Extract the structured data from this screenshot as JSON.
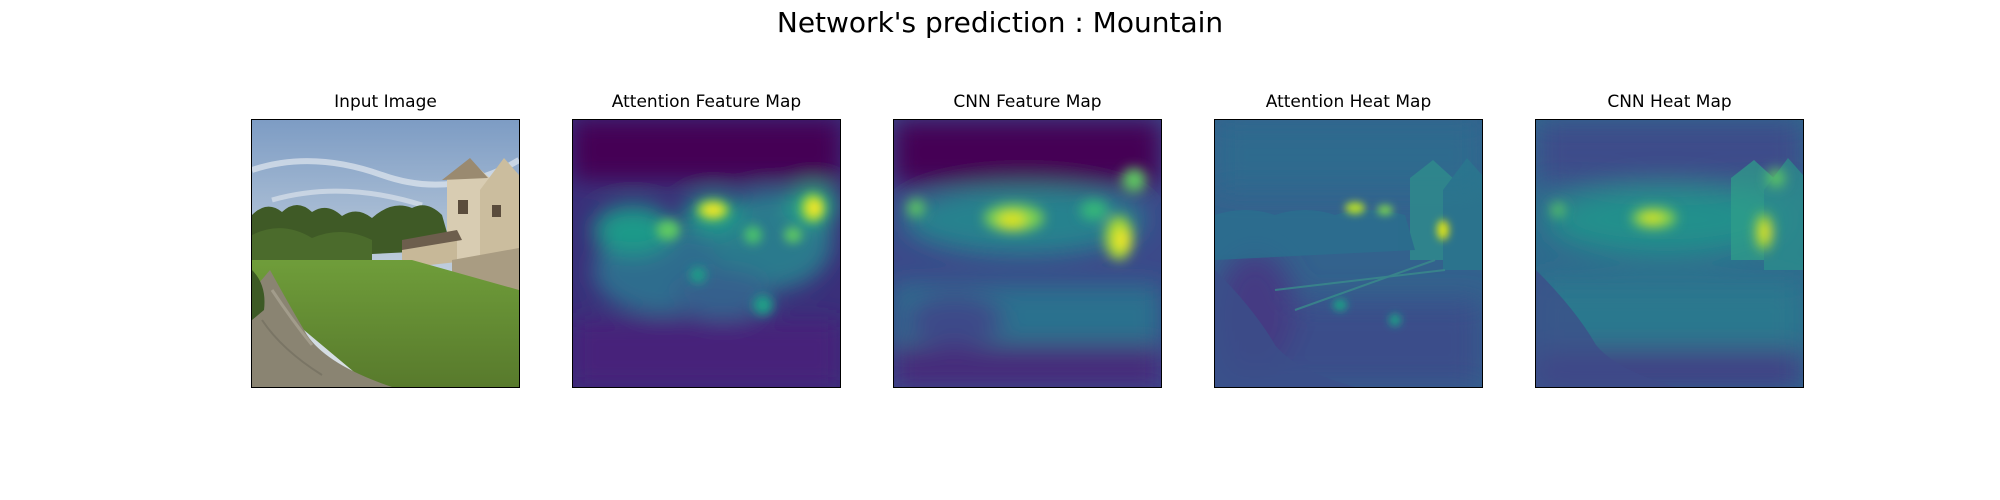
{
  "figure": {
    "suptitle": "Network's prediction : Mountain",
    "panels": [
      {
        "title": "Input Image",
        "icon": "landscape-photo"
      },
      {
        "title": "Attention Feature Map",
        "icon": "viridis-feature-map"
      },
      {
        "title": "CNN Feature Map",
        "icon": "viridis-feature-map"
      },
      {
        "title": "Attention Heat Map",
        "icon": "viridis-heat-overlay"
      },
      {
        "title": "CNN Heat Map",
        "icon": "viridis-heat-overlay"
      }
    ]
  },
  "colors": {
    "viridis_dark": "#440154",
    "viridis_mid": "#21918c",
    "viridis_bright": "#fde725",
    "sky": "#9fb6cf",
    "grass": "#5f8f34",
    "stream": "#8a8472",
    "stone": "#d9ccb0"
  }
}
